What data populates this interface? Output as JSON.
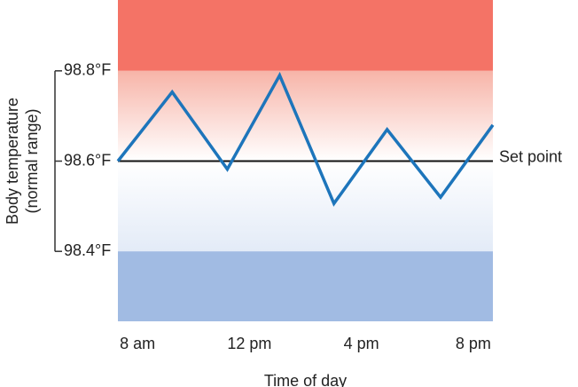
{
  "chart_data": {
    "type": "line",
    "y_label": [
      "Body temperature",
      "(normal range)"
    ],
    "x_label": "Time of day",
    "x": [
      7.3,
      9.24,
      11.21,
      13.08,
      15.02,
      16.92,
      18.83,
      20.7
    ],
    "series": [
      {
        "color": "#1d75bb",
        "values": [
          98.6,
          98.753,
          98.582,
          98.79,
          98.506,
          98.67,
          98.52,
          98.68
        ]
      }
    ],
    "xlim": [
      7.3,
      20.7
    ],
    "xticks": [
      {
        "value": 8,
        "label": "8 am"
      },
      {
        "value": 12,
        "label": "12 pm"
      },
      {
        "value": 16,
        "label": "4 pm"
      },
      {
        "value": 20,
        "label": "8 pm"
      }
    ],
    "ylim": [
      98.245,
      98.957
    ],
    "yticks": [
      {
        "value": 98.4,
        "label": "98.4°F"
      },
      {
        "value": 98.6,
        "label": "98.6°F"
      },
      {
        "value": 98.8,
        "label": "98.8°F"
      }
    ],
    "set_point": {
      "value": 98.6,
      "label": "Set point"
    },
    "band_colors": {
      "high": "#f47366",
      "low": "#a1bbe3"
    }
  }
}
